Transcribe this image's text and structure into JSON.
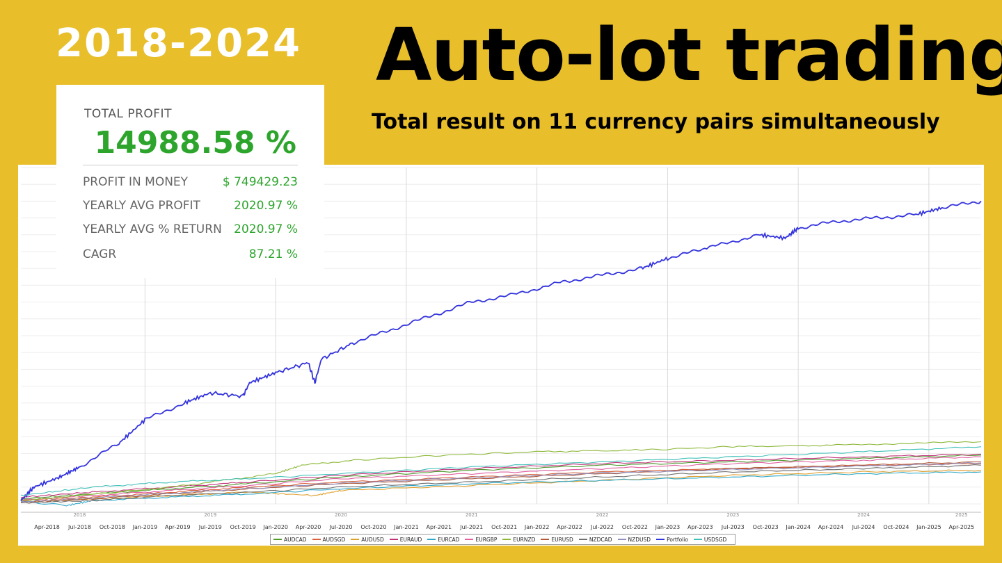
{
  "header": {
    "years": "2018-2024",
    "title": "Auto-lot trading",
    "subtitle": "Total result on 11 currency pairs simultaneously"
  },
  "stats": {
    "total_profit_label": "TOTAL PROFIT",
    "total_profit_value": "14988.58 %",
    "rows": [
      {
        "label": "PROFIT IN MONEY",
        "value": "$ 749429.23"
      },
      {
        "label": "YEARLY AVG PROFIT",
        "value": "2020.97 %"
      },
      {
        "label": "YEARLY AVG % RETURN",
        "value": "2020.97 %"
      },
      {
        "label": "CAGR",
        "value": "87.21 %"
      }
    ]
  },
  "colors": {
    "background": "#E8BE2B",
    "profit_green": "#2DA52D",
    "portfolio": "#3333DD"
  },
  "chart_data": {
    "type": "line",
    "title": "",
    "xlabel": "",
    "ylabel": "",
    "x_ticks": [
      "Apr-2018",
      "Jul-2018",
      "Oct-2018",
      "Jan-2019",
      "Apr-2019",
      "Jul-2019",
      "Oct-2019",
      "Jan-2020",
      "Apr-2020",
      "Jul-2020",
      "Oct-2020",
      "Jan-2021",
      "Apr-2021",
      "Jul-2021",
      "Oct-2021",
      "Jan-2022",
      "Apr-2022",
      "Jul-2022",
      "Oct-2022",
      "Jan-2023",
      "Apr-2023",
      "Jul-2023",
      "Oct-2023",
      "Jan-2024",
      "Apr-2024",
      "Jul-2024",
      "Oct-2024",
      "Jan-2025",
      "Apr-2025"
    ],
    "year_labels": [
      "2018",
      "2019",
      "2020",
      "2021",
      "2022",
      "2023",
      "2024",
      "2025"
    ],
    "x_range": [
      2018.05,
      2025.4
    ],
    "ylim": [
      0,
      100
    ],
    "grid": true,
    "legend_position": "bottom",
    "series": [
      {
        "name": "AUDCAD",
        "color": "#4E9A2E",
        "points": [
          [
            2018.05,
            1.5
          ],
          [
            2018.6,
            3
          ],
          [
            2019.2,
            4.5
          ],
          [
            2019.8,
            6
          ],
          [
            2020.5,
            8
          ],
          [
            2021.5,
            10
          ],
          [
            2022.5,
            11.5
          ],
          [
            2023.5,
            12.5
          ],
          [
            2024.5,
            13.5
          ],
          [
            2025.4,
            14.5
          ]
        ]
      },
      {
        "name": "AUDSGD",
        "color": "#D9603A",
        "points": [
          [
            2018.05,
            1
          ],
          [
            2018.6,
            2
          ],
          [
            2019.2,
            3.5
          ],
          [
            2019.8,
            5
          ],
          [
            2020.5,
            6.5
          ],
          [
            2021.5,
            8
          ],
          [
            2022.5,
            9.5
          ],
          [
            2023.5,
            10.5
          ],
          [
            2024.5,
            11.5
          ],
          [
            2025.4,
            12
          ]
        ]
      },
      {
        "name": "AUDUSD",
        "color": "#E0A030",
        "points": [
          [
            2018.05,
            0.5
          ],
          [
            2018.6,
            1.5
          ],
          [
            2019.2,
            2.5
          ],
          [
            2019.8,
            3.5
          ],
          [
            2020.3,
            2.5
          ],
          [
            2020.5,
            4
          ],
          [
            2021.5,
            5.5
          ],
          [
            2022.5,
            7
          ],
          [
            2023.5,
            8.5
          ],
          [
            2024.5,
            9.5
          ],
          [
            2025.4,
            10
          ]
        ]
      },
      {
        "name": "EURAUD",
        "color": "#C0337A",
        "points": [
          [
            2018.05,
            2
          ],
          [
            2018.6,
            3.5
          ],
          [
            2019.2,
            5
          ],
          [
            2019.8,
            6.5
          ],
          [
            2020.5,
            8.5
          ],
          [
            2021.5,
            10.5
          ],
          [
            2022.5,
            12
          ],
          [
            2023.5,
            13
          ],
          [
            2024.5,
            14
          ],
          [
            2025.4,
            14.8
          ]
        ]
      },
      {
        "name": "EURCAD",
        "color": "#2FA8C8",
        "points": [
          [
            2018.05,
            0.8
          ],
          [
            2018.4,
            -0.5
          ],
          [
            2018.6,
            1
          ],
          [
            2019.2,
            2
          ],
          [
            2019.8,
            3
          ],
          [
            2020.5,
            4.5
          ],
          [
            2021.5,
            6
          ],
          [
            2022.5,
            7
          ],
          [
            2023.5,
            8
          ],
          [
            2024.5,
            9
          ],
          [
            2025.4,
            9.5
          ]
        ]
      },
      {
        "name": "EURGBP",
        "color": "#E060A0",
        "points": [
          [
            2018.05,
            1.2
          ],
          [
            2018.6,
            2.5
          ],
          [
            2019.2,
            4
          ],
          [
            2019.8,
            5.5
          ],
          [
            2020.5,
            7.5
          ],
          [
            2021.5,
            9
          ],
          [
            2022.5,
            10.5
          ],
          [
            2023.5,
            12
          ],
          [
            2024.5,
            13
          ],
          [
            2025.4,
            14
          ]
        ]
      },
      {
        "name": "EURNZD",
        "color": "#8DB83A",
        "points": [
          [
            2018.05,
            1
          ],
          [
            2018.5,
            2.5
          ],
          [
            2019.2,
            5
          ],
          [
            2019.6,
            7
          ],
          [
            2020.0,
            9
          ],
          [
            2020.2,
            11.5
          ],
          [
            2020.6,
            13
          ],
          [
            2021.3,
            14.5
          ],
          [
            2022.0,
            15.5
          ],
          [
            2022.8,
            16
          ],
          [
            2023.5,
            17
          ],
          [
            2024.3,
            17.5
          ],
          [
            2025.4,
            18.5
          ]
        ]
      },
      {
        "name": "EURUSD",
        "color": "#B05A3A",
        "points": [
          [
            2018.05,
            0.5
          ],
          [
            2018.6,
            1.5
          ],
          [
            2019.2,
            3
          ],
          [
            2019.8,
            4.5
          ],
          [
            2020.5,
            6
          ],
          [
            2021.5,
            7.5
          ],
          [
            2022.5,
            9
          ],
          [
            2023.5,
            10.5
          ],
          [
            2024.5,
            11.5
          ],
          [
            2025.4,
            12.5
          ]
        ]
      },
      {
        "name": "NZDCAD",
        "color": "#707070",
        "points": [
          [
            2018.05,
            0.3
          ],
          [
            2018.6,
            1
          ],
          [
            2019.2,
            2.5
          ],
          [
            2019.8,
            3.5
          ],
          [
            2020.5,
            5
          ],
          [
            2021.5,
            6.5
          ],
          [
            2022.5,
            8
          ],
          [
            2023.5,
            9.5
          ],
          [
            2024.5,
            10.5
          ],
          [
            2025.4,
            11.5
          ]
        ]
      },
      {
        "name": "NZDUSD",
        "color": "#9090C0",
        "points": [
          [
            2018.05,
            0.6
          ],
          [
            2018.6,
            1.8
          ],
          [
            2019.2,
            3.2
          ],
          [
            2019.8,
            4.6
          ],
          [
            2020.5,
            6.2
          ],
          [
            2021.5,
            7.8
          ],
          [
            2022.5,
            9.2
          ],
          [
            2023.5,
            10.2
          ],
          [
            2024.5,
            11.2
          ],
          [
            2025.4,
            12.2
          ]
        ]
      },
      {
        "name": "Portfolio",
        "color": "#3333DD",
        "points": [
          [
            2018.05,
            1
          ],
          [
            2018.15,
            5
          ],
          [
            2018.35,
            8
          ],
          [
            2018.5,
            11
          ],
          [
            2018.8,
            18
          ],
          [
            2019.0,
            25
          ],
          [
            2019.3,
            30
          ],
          [
            2019.5,
            33
          ],
          [
            2019.75,
            32
          ],
          [
            2019.8,
            36
          ],
          [
            2020.0,
            39
          ],
          [
            2020.25,
            42
          ],
          [
            2020.3,
            36
          ],
          [
            2020.35,
            43
          ],
          [
            2020.6,
            48
          ],
          [
            2020.9,
            52
          ],
          [
            2021.2,
            56
          ],
          [
            2021.5,
            60
          ],
          [
            2021.8,
            62
          ],
          [
            2022.2,
            66
          ],
          [
            2022.5,
            68
          ],
          [
            2022.8,
            70
          ],
          [
            2023.0,
            73
          ],
          [
            2023.3,
            76
          ],
          [
            2023.7,
            80
          ],
          [
            2023.9,
            79
          ],
          [
            2024.0,
            82
          ],
          [
            2024.3,
            84
          ],
          [
            2024.6,
            85
          ],
          [
            2024.9,
            86
          ],
          [
            2025.1,
            88
          ],
          [
            2025.4,
            90
          ]
        ]
      },
      {
        "name": "USDSGD",
        "color": "#40C0B8",
        "points": [
          [
            2018.05,
            2.5
          ],
          [
            2018.6,
            5
          ],
          [
            2019.2,
            6.5
          ],
          [
            2019.8,
            7.5
          ],
          [
            2020.5,
            9
          ],
          [
            2021.5,
            11
          ],
          [
            2022.5,
            12.5
          ],
          [
            2023.5,
            14
          ],
          [
            2024.5,
            15.5
          ],
          [
            2025.4,
            17
          ]
        ]
      }
    ]
  }
}
